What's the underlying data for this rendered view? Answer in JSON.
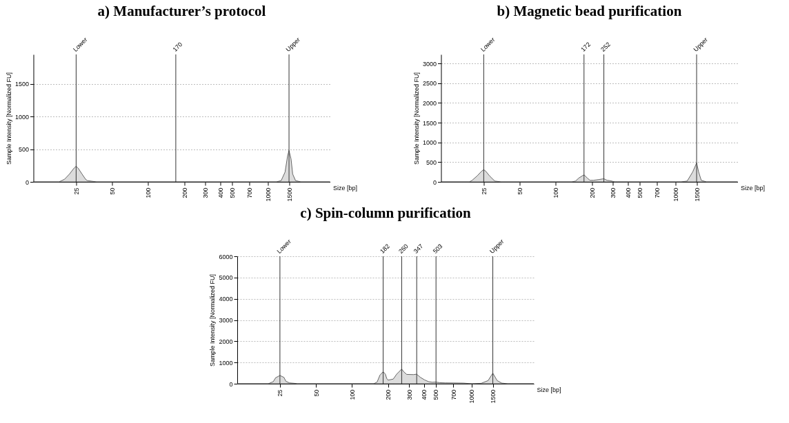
{
  "chart_data": [
    {
      "type": "area",
      "title": "a) Manufacturer’s protocol",
      "xlabel": "Size [bp]",
      "ylabel": "Sample Intensity [Normalized FU]",
      "xlim": [
        11,
        3300
      ],
      "ylim": [
        0,
        1950
      ],
      "log": "x",
      "xticks": [
        25,
        50,
        100,
        200,
        300,
        400,
        500,
        700,
        1000,
        1500
      ],
      "yticks": [
        0,
        500,
        1000,
        1500
      ],
      "grid": "y",
      "series": [
        {
          "color": "#dcdcdc",
          "x": [
            11,
            18,
            20,
            22,
            24,
            25,
            26,
            28,
            30,
            31,
            37,
            170,
            1180,
            1290,
            1390,
            1460,
            1500,
            1560,
            1610,
            1700,
            1880,
            3300
          ],
          "values": [
            0,
            0,
            40,
            120,
            210,
            240,
            210,
            120,
            40,
            20,
            0,
            0,
            0,
            20,
            150,
            400,
            480,
            350,
            120,
            20,
            0,
            0
          ]
        }
      ],
      "ref_lines": [
        {
          "axis": "x",
          "value": 25,
          "label": "Lower"
        },
        {
          "axis": "x",
          "value": 170,
          "label": "170"
        },
        {
          "axis": "x",
          "value": 1500,
          "label": "Upper"
        }
      ]
    },
    {
      "type": "area",
      "title": "b) Magnetic bead purification",
      "xlabel": "Size [bp]",
      "ylabel": "Sample Intensity [Normalized FU]",
      "xlim": [
        11,
        3300
      ],
      "ylim": [
        0,
        3230
      ],
      "log": "x",
      "xticks": [
        25,
        50,
        100,
        200,
        300,
        400,
        500,
        700,
        1000,
        1500
      ],
      "yticks": [
        0,
        500,
        1000,
        1500,
        2000,
        2500,
        3000
      ],
      "grid": "y",
      "series": [
        {
          "color": "#dcdcdc",
          "x": [
            11,
            19,
            20,
            22,
            24,
            25,
            26,
            28,
            30,
            31,
            35,
            136,
            146,
            156,
            172,
            183,
            193,
            206,
            230,
            252,
            268,
            284,
            311,
            328,
            1110,
            1250,
            1390,
            1500,
            1560,
            1640,
            1810,
            1950,
            3300
          ],
          "values": [
            0,
            0,
            40,
            150,
            270,
            310,
            270,
            150,
            60,
            20,
            0,
            0,
            20,
            100,
            180,
            100,
            40,
            40,
            60,
            80,
            40,
            30,
            0,
            0,
            0,
            20,
            250,
            480,
            250,
            40,
            0,
            0,
            0
          ]
        }
      ],
      "ref_lines": [
        {
          "axis": "x",
          "value": 25,
          "label": "Lower"
        },
        {
          "axis": "x",
          "value": 172,
          "label": "172"
        },
        {
          "axis": "x",
          "value": 252,
          "label": "252"
        },
        {
          "axis": "x",
          "value": 1500,
          "label": "Upper"
        }
      ]
    },
    {
      "type": "area",
      "title": "c) Spin-column purification",
      "xlabel": "Size [bp]",
      "ylabel": "Sample Intensity [Normalized FU]",
      "xlim": [
        11,
        3300
      ],
      "ylim": [
        0,
        6000
      ],
      "log": "x",
      "xticks": [
        25,
        50,
        100,
        200,
        300,
        400,
        500,
        700,
        1000,
        1500
      ],
      "yticks": [
        0,
        1000,
        2000,
        3000,
        4000,
        5000,
        6000
      ],
      "grid": "y",
      "series": [
        {
          "color": "#dcdcdc",
          "x": [
            11,
            18,
            20,
            22,
            23,
            25,
            27,
            28,
            30,
            33,
            35,
            152,
            162,
            171,
            182,
            190,
            195,
            200,
            221,
            236,
            260,
            271,
            286,
            326,
            347,
            373,
            404,
            436,
            468,
            503,
            540,
            600,
            850,
            1000,
            1200,
            1370,
            1500,
            1630,
            1780,
            2000,
            2150,
            3300
          ],
          "values": [
            0,
            0,
            0,
            100,
            280,
            390,
            300,
            120,
            40,
            20,
            0,
            0,
            80,
            400,
            570,
            450,
            250,
            170,
            220,
            450,
            690,
            560,
            440,
            430,
            450,
            300,
            180,
            100,
            70,
            80,
            50,
            40,
            30,
            0,
            20,
            150,
            500,
            150,
            30,
            0,
            0,
            0
          ]
        }
      ],
      "ref_lines": [
        {
          "axis": "x",
          "value": 25,
          "label": "Lower"
        },
        {
          "axis": "x",
          "value": 182,
          "label": "182"
        },
        {
          "axis": "x",
          "value": 260,
          "label": "260"
        },
        {
          "axis": "x",
          "value": 347,
          "label": "347"
        },
        {
          "axis": "x",
          "value": 503,
          "label": "503"
        },
        {
          "axis": "x",
          "value": 1500,
          "label": "Upper"
        }
      ]
    }
  ]
}
